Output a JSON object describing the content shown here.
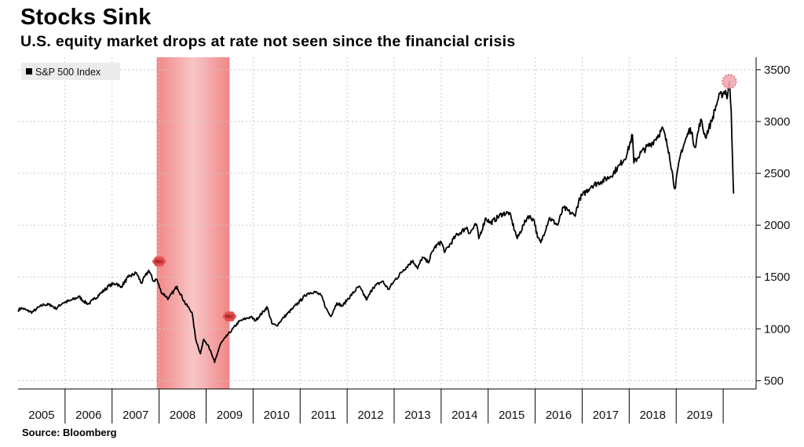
{
  "title": "Stocks Sink",
  "subtitle": "U.S. equity market drops at rate not seen since the financial crisis",
  "source": "Source: Bloomberg",
  "chart_data": {
    "type": "line",
    "legend": {
      "label": "S&P 500 Index",
      "placement": "top-left"
    },
    "series": [
      {
        "name": "S&P 500 Index",
        "color": "#000000",
        "points": [
          [
            2005.0,
            1182
          ],
          [
            2005.08,
            1200
          ],
          [
            2005.2,
            1175
          ],
          [
            2005.3,
            1160
          ],
          [
            2005.4,
            1195
          ],
          [
            2005.55,
            1235
          ],
          [
            2005.7,
            1230
          ],
          [
            2005.8,
            1195
          ],
          [
            2005.95,
            1250
          ],
          [
            2006.1,
            1270
          ],
          [
            2006.3,
            1310
          ],
          [
            2006.4,
            1265
          ],
          [
            2006.5,
            1240
          ],
          [
            2006.6,
            1280
          ],
          [
            2006.75,
            1340
          ],
          [
            2006.95,
            1420
          ],
          [
            2007.1,
            1440
          ],
          [
            2007.18,
            1400
          ],
          [
            2007.35,
            1500
          ],
          [
            2007.52,
            1540
          ],
          [
            2007.62,
            1440
          ],
          [
            2007.78,
            1565
          ],
          [
            2007.88,
            1460
          ],
          [
            2007.95,
            1480
          ],
          [
            2008.04,
            1360
          ],
          [
            2008.2,
            1290
          ],
          [
            2008.38,
            1410
          ],
          [
            2008.55,
            1250
          ],
          [
            2008.7,
            1160
          ],
          [
            2008.78,
            900
          ],
          [
            2008.88,
            760
          ],
          [
            2008.95,
            900
          ],
          [
            2009.05,
            840
          ],
          [
            2009.18,
            676
          ],
          [
            2009.3,
            850
          ],
          [
            2009.42,
            920
          ],
          [
            2009.55,
            990
          ],
          [
            2009.7,
            1070
          ],
          [
            2009.85,
            1100
          ],
          [
            2009.95,
            1115
          ],
          [
            2010.05,
            1080
          ],
          [
            2010.3,
            1210
          ],
          [
            2010.4,
            1050
          ],
          [
            2010.5,
            1030
          ],
          [
            2010.65,
            1110
          ],
          [
            2010.85,
            1200
          ],
          [
            2011.0,
            1270
          ],
          [
            2011.15,
            1340
          ],
          [
            2011.3,
            1360
          ],
          [
            2011.45,
            1320
          ],
          [
            2011.55,
            1200
          ],
          [
            2011.65,
            1120
          ],
          [
            2011.78,
            1250
          ],
          [
            2011.9,
            1220
          ],
          [
            2012.0,
            1280
          ],
          [
            2012.25,
            1410
          ],
          [
            2012.42,
            1280
          ],
          [
            2012.55,
            1400
          ],
          [
            2012.75,
            1460
          ],
          [
            2012.88,
            1380
          ],
          [
            2013.0,
            1460
          ],
          [
            2013.2,
            1570
          ],
          [
            2013.4,
            1660
          ],
          [
            2013.5,
            1580
          ],
          [
            2013.6,
            1690
          ],
          [
            2013.72,
            1640
          ],
          [
            2013.85,
            1780
          ],
          [
            2014.0,
            1840
          ],
          [
            2014.08,
            1740
          ],
          [
            2014.3,
            1890
          ],
          [
            2014.55,
            1980
          ],
          [
            2014.6,
            1920
          ],
          [
            2014.75,
            2010
          ],
          [
            2014.8,
            1870
          ],
          [
            2014.95,
            2070
          ],
          [
            2015.05,
            2020
          ],
          [
            2015.3,
            2110
          ],
          [
            2015.45,
            2120
          ],
          [
            2015.62,
            1870
          ],
          [
            2015.75,
            2000
          ],
          [
            2015.85,
            2090
          ],
          [
            2015.98,
            2050
          ],
          [
            2016.05,
            1880
          ],
          [
            2016.12,
            1830
          ],
          [
            2016.3,
            2070
          ],
          [
            2016.48,
            2000
          ],
          [
            2016.6,
            2170
          ],
          [
            2016.84,
            2090
          ],
          [
            2016.95,
            2260
          ],
          [
            2017.2,
            2380
          ],
          [
            2017.4,
            2420
          ],
          [
            2017.6,
            2470
          ],
          [
            2017.8,
            2580
          ],
          [
            2017.95,
            2680
          ],
          [
            2018.07,
            2870
          ],
          [
            2018.1,
            2600
          ],
          [
            2018.25,
            2700
          ],
          [
            2018.5,
            2800
          ],
          [
            2018.72,
            2930
          ],
          [
            2018.85,
            2700
          ],
          [
            2018.97,
            2350
          ],
          [
            2019.1,
            2700
          ],
          [
            2019.3,
            2940
          ],
          [
            2019.4,
            2750
          ],
          [
            2019.52,
            3020
          ],
          [
            2019.62,
            2850
          ],
          [
            2019.75,
            3000
          ],
          [
            2019.9,
            3230
          ],
          [
            2020.05,
            3300
          ],
          [
            2020.08,
            3220
          ],
          [
            2020.13,
            3386
          ],
          [
            2020.17,
            3100
          ],
          [
            2020.2,
            2600
          ],
          [
            2020.22,
            2305
          ]
        ]
      }
    ],
    "xlim": [
      2005,
      2020.7
    ],
    "ylim": [
      420,
      3620
    ],
    "x_tick_labels": [
      "2005",
      "2006",
      "2007",
      "2008",
      "2009",
      "2010",
      "2011",
      "2012",
      "2013",
      "2014",
      "2015",
      "2016",
      "2017",
      "2018",
      "2019"
    ],
    "y_ticks": [
      500,
      1000,
      1500,
      2000,
      2500,
      3000,
      3500
    ],
    "y_axis_side": "right",
    "grid": true,
    "shaded_regions": [
      {
        "x_start": 2007.95,
        "x_end": 2009.5,
        "color": "#f08080"
      }
    ],
    "markers": [
      {
        "x": 2008.0,
        "y": 1650,
        "label": "REC",
        "color": "#e35050"
      },
      {
        "x": 2009.5,
        "y": 1120,
        "label": "REC",
        "color": "#e35050"
      }
    ],
    "highlight_point": {
      "x": 2020.13,
      "y": 3386,
      "color": "#f0a8b4"
    }
  }
}
